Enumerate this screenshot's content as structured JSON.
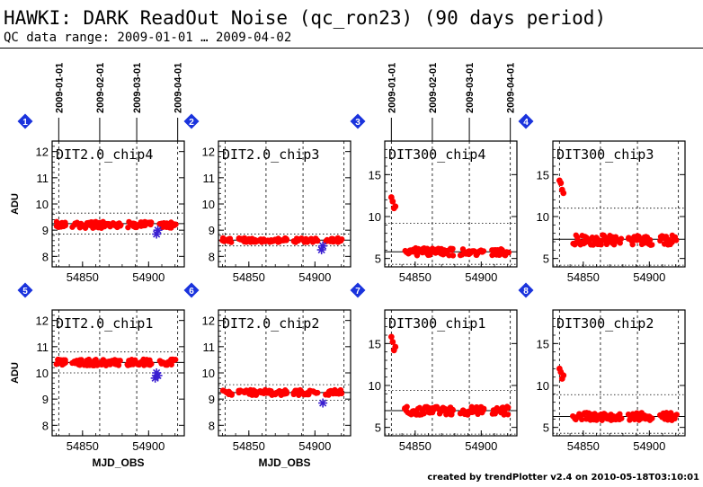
{
  "header": {
    "title": "HAWKI: DARK ReadOut Noise (qc_ron23) (90 days period)",
    "subtitle": "QC data range: 2009-01-01 … 2009-04-02"
  },
  "footer": "created by trendPlotter v2.4 on 2010-05-18T03:10:01",
  "colors": {
    "points": "#ff0000",
    "outliers": "#3a1fd0",
    "badge": "#1a33dd",
    "text": "#000000"
  },
  "date_ticks": [
    {
      "label": "2009-01-01",
      "mjd": 54832
    },
    {
      "label": "2009-02-01",
      "mjd": 54863
    },
    {
      "label": "2009-03-01",
      "mjd": 54891
    },
    {
      "label": "2009-04-01",
      "mjd": 54922
    }
  ],
  "chart_data": [
    {
      "type": "scatter",
      "badge": "1",
      "title": "DIT2.0_chip4",
      "ylabel": "ADU",
      "xlabel": "",
      "xlim": [
        54827,
        54927
      ],
      "ylim": [
        7.6,
        12.4
      ],
      "yticks": [
        8,
        9,
        10,
        11,
        12
      ],
      "xticks": [
        54850,
        54900
      ],
      "hline": 9.25,
      "band": [
        8.85,
        9.65
      ],
      "baseline": 9.2,
      "spread": 0.12,
      "gaps": [
        [
          54837,
          54841
        ],
        [
          54879,
          54883
        ],
        [
          54902,
          54908
        ]
      ],
      "outliers": [
        {
          "x": 54906,
          "y": 8.85
        },
        {
          "x": 54907,
          "y": 9.0
        }
      ],
      "points_hi": []
    },
    {
      "type": "scatter",
      "badge": "2",
      "title": "DIT2.0_chip3",
      "ylabel": "",
      "xlabel": "",
      "xlim": [
        54827,
        54927
      ],
      "ylim": [
        7.6,
        12.4
      ],
      "yticks": [
        8,
        9,
        10,
        11,
        12
      ],
      "xticks": [
        54850,
        54900
      ],
      "hline": 8.62,
      "band": [
        8.4,
        8.85
      ],
      "baseline": 8.62,
      "spread": 0.08,
      "gaps": [
        [
          54837,
          54841
        ],
        [
          54879,
          54883
        ],
        [
          54902,
          54908
        ]
      ],
      "outliers": [
        {
          "x": 54905,
          "y": 8.25
        },
        {
          "x": 54906,
          "y": 8.4
        }
      ],
      "points_hi": []
    },
    {
      "type": "scatter",
      "badge": "3",
      "title": "DIT300_chip4",
      "ylabel": "",
      "xlabel": "",
      "xlim": [
        54827,
        54927
      ],
      "ylim": [
        4,
        19
      ],
      "yticks": [
        5,
        10,
        15
      ],
      "xticks": [
        54850,
        54900
      ],
      "hline": 5.8,
      "band": [
        4.3,
        9.2
      ],
      "baseline": 5.8,
      "spread": 0.45,
      "gaps": [
        [
          54837,
          54841
        ],
        [
          54879,
          54883
        ],
        [
          54902,
          54908
        ]
      ],
      "outliers": [],
      "points_hi": [
        {
          "x": 54832,
          "y": 12.3
        },
        {
          "x": 54833,
          "y": 11.8
        },
        {
          "x": 54834,
          "y": 11.0
        },
        {
          "x": 54835,
          "y": 11.2
        }
      ]
    },
    {
      "type": "scatter",
      "badge": "4",
      "title": "DIT300_chip3",
      "ylabel": "",
      "xlabel": "",
      "xlim": [
        54827,
        54927
      ],
      "ylim": [
        4,
        19
      ],
      "yticks": [
        5,
        10,
        15
      ],
      "xticks": [
        54850,
        54900
      ],
      "hline": 7.3,
      "band": [
        4.2,
        11.0
      ],
      "baseline": 7.2,
      "spread": 0.6,
      "gaps": [
        [
          54837,
          54841
        ],
        [
          54879,
          54883
        ],
        [
          54902,
          54908
        ]
      ],
      "outliers": [],
      "points_hi": [
        {
          "x": 54832,
          "y": 14.3
        },
        {
          "x": 54833,
          "y": 14.0
        },
        {
          "x": 54834,
          "y": 13.2
        },
        {
          "x": 54835,
          "y": 12.8
        }
      ]
    },
    {
      "type": "scatter",
      "badge": "5",
      "title": "DIT2.0_chip1",
      "ylabel": "ADU",
      "xlabel": "MJD_OBS",
      "xlim": [
        54827,
        54927
      ],
      "ylim": [
        7.6,
        12.4
      ],
      "yticks": [
        8,
        9,
        10,
        11,
        12
      ],
      "xticks": [
        54850,
        54900
      ],
      "hline": 10.4,
      "band": [
        10.0,
        10.8
      ],
      "baseline": 10.4,
      "spread": 0.12,
      "gaps": [
        [
          54837,
          54841
        ],
        [
          54879,
          54883
        ],
        [
          54902,
          54908
        ]
      ],
      "outliers": [
        {
          "x": 54905,
          "y": 9.8
        },
        {
          "x": 54906,
          "y": 10.0
        },
        {
          "x": 54907,
          "y": 9.9
        }
      ],
      "points_hi": []
    },
    {
      "type": "scatter",
      "badge": "6",
      "title": "DIT2.0_chip2",
      "ylabel": "",
      "xlabel": "MJD_OBS",
      "xlim": [
        54827,
        54927
      ],
      "ylim": [
        7.6,
        12.4
      ],
      "yticks": [
        8,
        9,
        10,
        11,
        12
      ],
      "xticks": [
        54850,
        54900
      ],
      "hline": 9.25,
      "band": [
        8.95,
        9.55
      ],
      "baseline": 9.25,
      "spread": 0.1,
      "gaps": [
        [
          54837,
          54841
        ],
        [
          54879,
          54883
        ],
        [
          54902,
          54908
        ]
      ],
      "outliers": [
        {
          "x": 54906,
          "y": 8.85
        }
      ],
      "points_hi": []
    },
    {
      "type": "scatter",
      "badge": "7",
      "title": "DIT300_chip1",
      "ylabel": "",
      "xlabel": "",
      "xlim": [
        54827,
        54927
      ],
      "ylim": [
        4,
        19
      ],
      "yticks": [
        5,
        10,
        15
      ],
      "xticks": [
        54850,
        54900
      ],
      "hline": 7.0,
      "band": [
        4.2,
        9.4
      ],
      "baseline": 7.0,
      "spread": 0.5,
      "gaps": [
        [
          54837,
          54841
        ],
        [
          54879,
          54883
        ],
        [
          54902,
          54908
        ]
      ],
      "outliers": [],
      "points_hi": [
        {
          "x": 54832,
          "y": 15.8
        },
        {
          "x": 54833,
          "y": 15.2
        },
        {
          "x": 54834,
          "y": 14.2
        },
        {
          "x": 54835,
          "y": 14.6
        }
      ]
    },
    {
      "type": "scatter",
      "badge": "8",
      "title": "DIT300_chip2",
      "ylabel": "",
      "xlabel": "",
      "xlim": [
        54827,
        54927
      ],
      "ylim": [
        4,
        19
      ],
      "yticks": [
        5,
        10,
        15
      ],
      "xticks": [
        54850,
        54900
      ],
      "hline": 6.3,
      "band": [
        4.3,
        8.9
      ],
      "baseline": 6.3,
      "spread": 0.45,
      "gaps": [
        [
          54837,
          54841
        ],
        [
          54879,
          54883
        ],
        [
          54902,
          54908
        ]
      ],
      "outliers": [],
      "points_hi": [
        {
          "x": 54832,
          "y": 12.0
        },
        {
          "x": 54833,
          "y": 11.6
        },
        {
          "x": 54834,
          "y": 10.8
        },
        {
          "x": 54835,
          "y": 11.2
        }
      ]
    }
  ]
}
